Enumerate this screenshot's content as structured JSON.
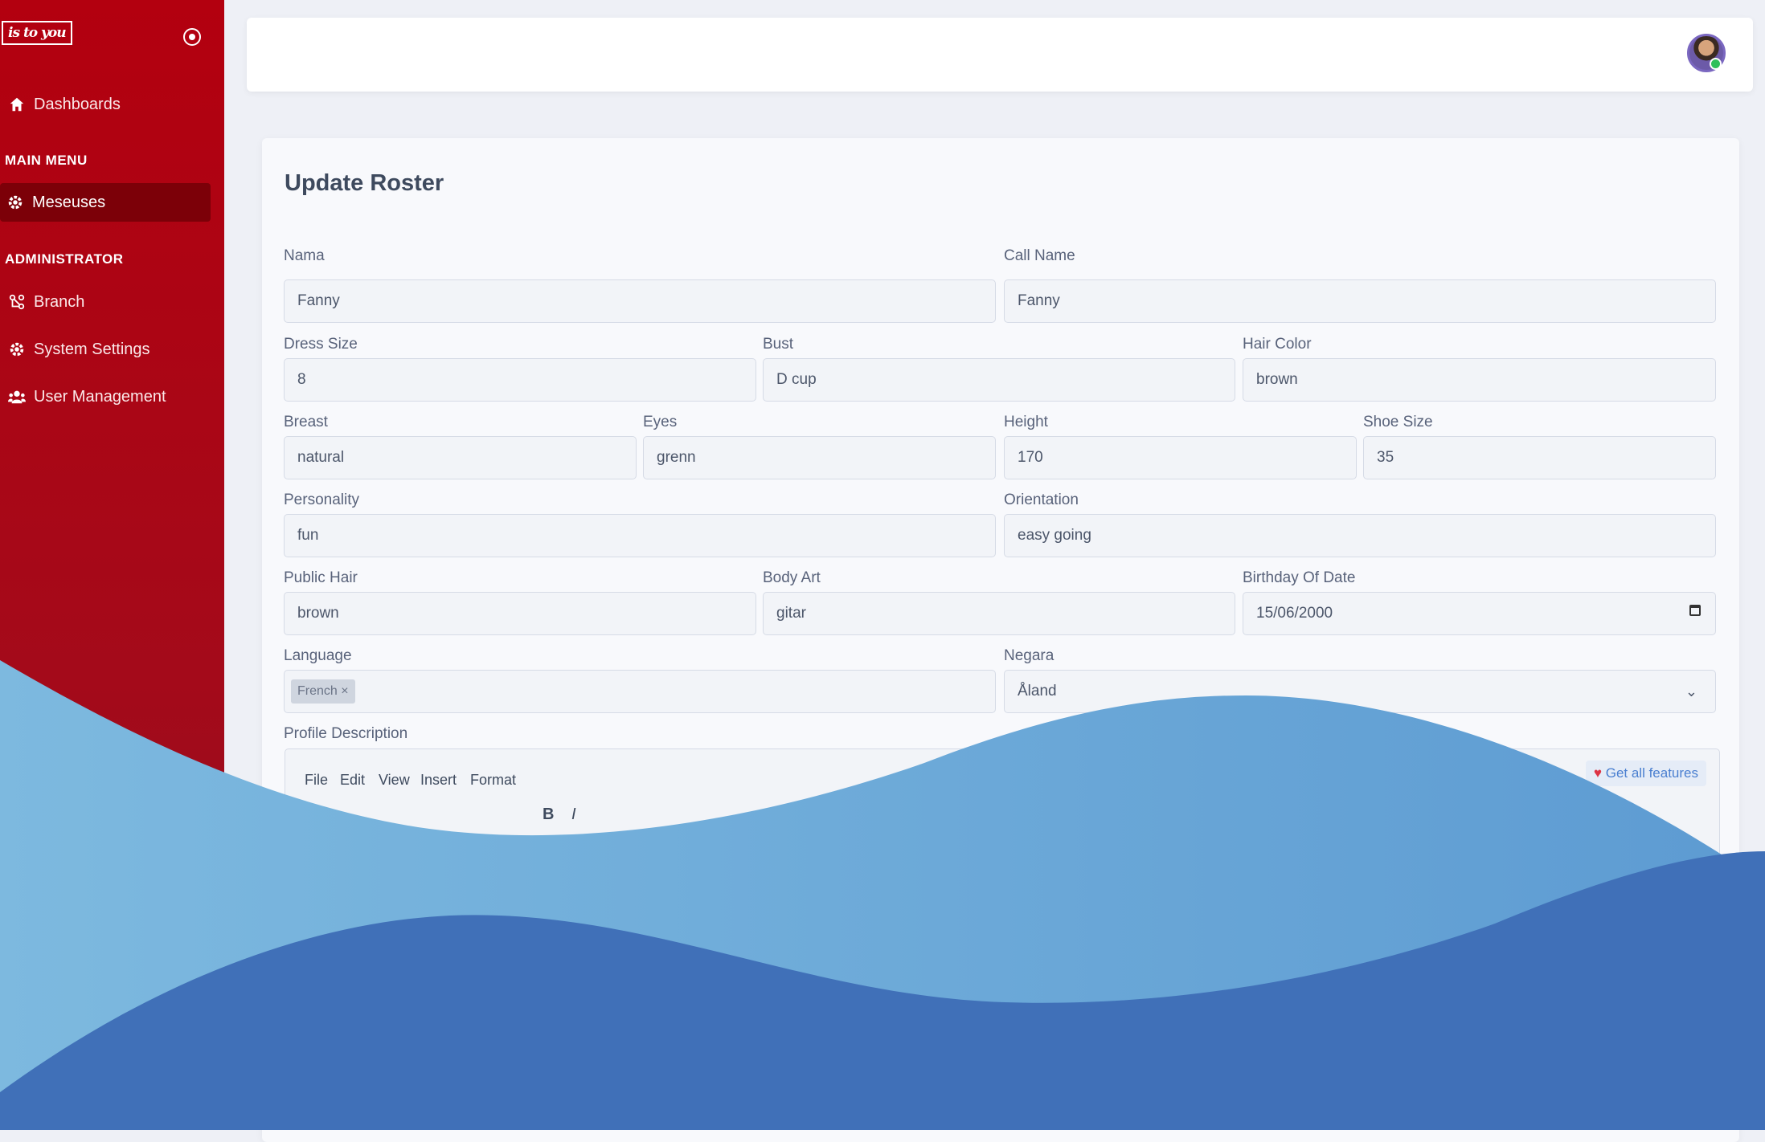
{
  "sidebar": {
    "logo_text": "is to you",
    "nav_dashboards": "Dashboards",
    "section_main": "MAIN MENU",
    "nav_meseuses": "Meseuses",
    "section_admin": "ADMINISTRATOR",
    "nav_branch": "Branch",
    "nav_system_settings": "System Settings",
    "nav_user_management": "User Management"
  },
  "form": {
    "title": "Update Roster",
    "nama": {
      "label": "Nama",
      "value": "Fanny"
    },
    "call_name": {
      "label": "Call Name",
      "value": "Fanny"
    },
    "dress_size": {
      "label": "Dress Size",
      "value": "8"
    },
    "bust": {
      "label": "Bust",
      "value": "D cup"
    },
    "hair_color": {
      "label": "Hair Color",
      "value": "brown"
    },
    "breast": {
      "label": "Breast",
      "value": "natural"
    },
    "eyes": {
      "label": "Eyes",
      "value": "grenn"
    },
    "height": {
      "label": "Height",
      "value": "170"
    },
    "shoe_size": {
      "label": "Shoe Size",
      "value": "35"
    },
    "personality": {
      "label": "Personality",
      "value": "fun"
    },
    "orientation": {
      "label": "Orientation",
      "value": "easy going"
    },
    "public_hair": {
      "label": "Public Hair",
      "value": "brown"
    },
    "body_art": {
      "label": "Body Art",
      "value": "gitar"
    },
    "birthday": {
      "label": "Birthday Of Date",
      "value": "15/06/2000"
    },
    "language": {
      "label": "Language",
      "chip": "French"
    },
    "negara": {
      "label": "Negara",
      "value": "Åland"
    },
    "profile_description": {
      "label": "Profile Description"
    }
  },
  "editor": {
    "menu": [
      "File",
      "Edit",
      "View",
      "Insert",
      "Format"
    ],
    "features_label": "Get all features",
    "bold": "B",
    "italic": "I"
  },
  "colors": {
    "sidebar": "#b3000f",
    "sidebar_active": "#7c0008",
    "wave_light": "#76b2da",
    "wave_dark": "#4070b8"
  }
}
